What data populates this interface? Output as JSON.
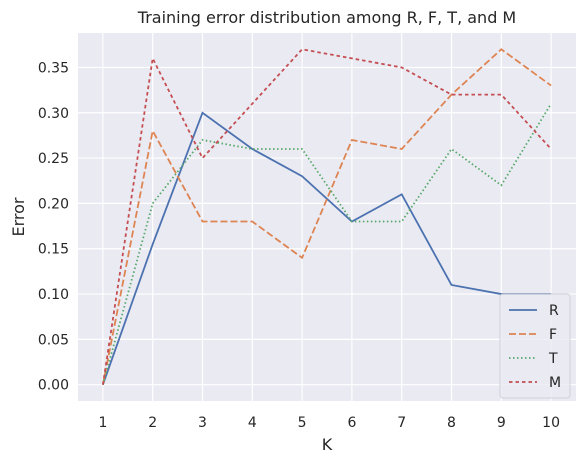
{
  "chart_data": {
    "type": "line",
    "title": "Training error distribution among R, F, T, and M",
    "xlabel": "K",
    "ylabel": "Error",
    "x": [
      1,
      2,
      3,
      4,
      5,
      6,
      7,
      8,
      9,
      10
    ],
    "xlim": [
      0.5,
      10.5
    ],
    "ylim": [
      -0.018,
      0.388
    ],
    "yticks": [
      0.0,
      0.05,
      0.1,
      0.15,
      0.2,
      0.25,
      0.3,
      0.35
    ],
    "ytick_labels": [
      "0.00",
      "0.05",
      "0.10",
      "0.15",
      "0.20",
      "0.25",
      "0.30",
      "0.35"
    ],
    "xtick_labels": [
      "1",
      "2",
      "3",
      "4",
      "5",
      "6",
      "7",
      "8",
      "9",
      "10"
    ],
    "grid": true,
    "legend_position": "bottom-right",
    "series": [
      {
        "name": "R",
        "color": "#4c72b0",
        "dash": "solid",
        "values": [
          0.0,
          0.155,
          0.3,
          0.26,
          0.23,
          0.18,
          0.21,
          0.11,
          0.1,
          0.1
        ]
      },
      {
        "name": "F",
        "color": "#dd8452",
        "dash": "dashed",
        "values": [
          0.0,
          0.28,
          0.18,
          0.18,
          0.14,
          0.27,
          0.26,
          0.32,
          0.37,
          0.33
        ]
      },
      {
        "name": "T",
        "color": "#55a868",
        "dash": "dotted",
        "values": [
          0.0,
          0.2,
          0.27,
          0.26,
          0.26,
          0.18,
          0.18,
          0.26,
          0.22,
          0.31
        ]
      },
      {
        "name": "M",
        "color": "#c44e52",
        "dash": "dashdot",
        "values": [
          0.0,
          0.36,
          0.25,
          0.31,
          0.37,
          0.36,
          0.35,
          0.32,
          0.32,
          0.26
        ]
      }
    ]
  }
}
